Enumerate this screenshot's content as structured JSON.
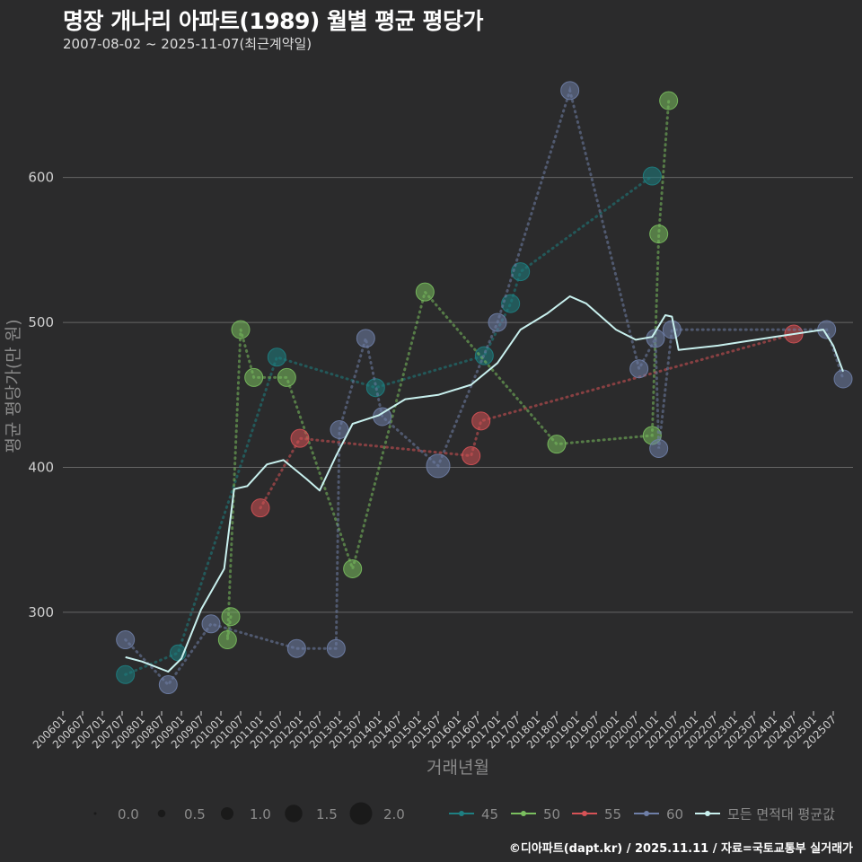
{
  "title": "명장 개나리 아파트(1989) 월별 평균 평당가",
  "subtitle": "2007-08-02 ~ 2025-11-07(최근계약일)",
  "footer": "©디아파트(dapt.kr) / 2025.11.11 / 자료=국토교통부 실거래가",
  "chart_data": {
    "type": "line",
    "title": "명장 개나리 아파트(1989) 월별 평균 평당가",
    "xlabel": "거래년월",
    "ylabel": "평균 평당가(만 원)",
    "ylim": [
      233,
      676
    ],
    "yticks": [
      300,
      400,
      500,
      600
    ],
    "x_range": [
      "2006-01",
      "2026-01"
    ],
    "x_ticks": [
      "200601",
      "200607",
      "200701",
      "200707",
      "200801",
      "200807",
      "200901",
      "200907",
      "201001",
      "201007",
      "201101",
      "201107",
      "201201",
      "201207",
      "201301",
      "201307",
      "201401",
      "201407",
      "201501",
      "201507",
      "201601",
      "201607",
      "201701",
      "201707",
      "201801",
      "201807",
      "201901",
      "201907",
      "202001",
      "202007",
      "202101",
      "202107",
      "202201",
      "202207",
      "202301",
      "202307",
      "202401",
      "202407",
      "202501",
      "202507"
    ],
    "size_legend": {
      "title": "",
      "values": [
        "0.0",
        "0.5",
        "1.0",
        "1.5",
        "2.0"
      ]
    },
    "color_legend": [
      "45",
      "50",
      "55",
      "60",
      "모든 면적대 평균값"
    ],
    "series": [
      {
        "name": "45",
        "color": "#1e7f82",
        "points": [
          {
            "x": "2007-08",
            "y": 257,
            "size": 1.0
          },
          {
            "x": "2008-12",
            "y": 272,
            "size": 0.8
          },
          {
            "x": "2011-06",
            "y": 476,
            "size": 1.0
          },
          {
            "x": "2013-12",
            "y": 455,
            "size": 1.0
          },
          {
            "x": "2016-09",
            "y": 477,
            "size": 1.0
          },
          {
            "x": "2017-05",
            "y": 513,
            "size": 1.0
          },
          {
            "x": "2017-08",
            "y": 535,
            "size": 1.0
          },
          {
            "x": "2020-12",
            "y": 601,
            "size": 1.0
          }
        ]
      },
      {
        "name": "50",
        "color": "#7abf5f",
        "points": [
          {
            "x": "2010-04",
            "y": 297,
            "size": 1.0
          },
          {
            "x": "2010-03",
            "y": 281,
            "size": 1.0
          },
          {
            "x": "2010-07",
            "y": 495,
            "size": 1.0
          },
          {
            "x": "2010-11",
            "y": 462,
            "size": 1.0
          },
          {
            "x": "2011-09",
            "y": 462,
            "size": 1.0
          },
          {
            "x": "2013-05",
            "y": 330,
            "size": 1.0
          },
          {
            "x": "2015-03",
            "y": 521,
            "size": 1.0
          },
          {
            "x": "2018-07",
            "y": 416,
            "size": 1.0
          },
          {
            "x": "2020-12",
            "y": 422,
            "size": 1.0
          },
          {
            "x": "2021-02",
            "y": 561,
            "size": 1.0
          },
          {
            "x": "2021-05",
            "y": 653,
            "size": 1.0
          }
        ]
      },
      {
        "name": "55",
        "color": "#d65256",
        "points": [
          {
            "x": "2011-01",
            "y": 372,
            "size": 1.0
          },
          {
            "x": "2012-01",
            "y": 420,
            "size": 1.0
          },
          {
            "x": "2016-05",
            "y": 408,
            "size": 1.0
          },
          {
            "x": "2016-08",
            "y": 432,
            "size": 1.0
          },
          {
            "x": "2024-07",
            "y": 492,
            "size": 1.0
          }
        ]
      },
      {
        "name": "60",
        "color": "#6f7fa8",
        "points": [
          {
            "x": "2007-08",
            "y": 281,
            "size": 1.0
          },
          {
            "x": "2008-09",
            "y": 250,
            "size": 1.0
          },
          {
            "x": "2009-10",
            "y": 292,
            "size": 1.0
          },
          {
            "x": "2011-12",
            "y": 275,
            "size": 1.0
          },
          {
            "x": "2012-12",
            "y": 275,
            "size": 1.0
          },
          {
            "x": "2013-01",
            "y": 426,
            "size": 1.0
          },
          {
            "x": "2013-09",
            "y": 489,
            "size": 1.0
          },
          {
            "x": "2014-02",
            "y": 435,
            "size": 1.0
          },
          {
            "x": "2015-07",
            "y": 401,
            "size": 1.5
          },
          {
            "x": "2017-01",
            "y": 500,
            "size": 1.0
          },
          {
            "x": "2018-11",
            "y": 660,
            "size": 1.0
          },
          {
            "x": "2020-08",
            "y": 468,
            "size": 1.0
          },
          {
            "x": "2021-01",
            "y": 489,
            "size": 1.0
          },
          {
            "x": "2021-02",
            "y": 413,
            "size": 1.0
          },
          {
            "x": "2021-06",
            "y": 495,
            "size": 1.0
          },
          {
            "x": "2025-05",
            "y": 495,
            "size": 1.0
          },
          {
            "x": "2025-10",
            "y": 461,
            "size": 1.0
          }
        ]
      },
      {
        "name": "모든 면적대 평균값",
        "color": "#c8f0ee",
        "points": [
          {
            "x": "2007-08",
            "y": 269
          },
          {
            "x": "2008-01",
            "y": 266
          },
          {
            "x": "2008-09",
            "y": 259
          },
          {
            "x": "2009-01",
            "y": 268
          },
          {
            "x": "2009-07",
            "y": 302
          },
          {
            "x": "2009-11",
            "y": 318
          },
          {
            "x": "2010-02",
            "y": 330
          },
          {
            "x": "2010-05",
            "y": 385
          },
          {
            "x": "2010-09",
            "y": 387
          },
          {
            "x": "2011-03",
            "y": 402
          },
          {
            "x": "2011-08",
            "y": 405
          },
          {
            "x": "2012-03",
            "y": 392
          },
          {
            "x": "2012-07",
            "y": 384
          },
          {
            "x": "2012-12",
            "y": 408
          },
          {
            "x": "2013-05",
            "y": 430
          },
          {
            "x": "2014-01",
            "y": 436
          },
          {
            "x": "2014-09",
            "y": 447
          },
          {
            "x": "2015-07",
            "y": 450
          },
          {
            "x": "2016-05",
            "y": 457
          },
          {
            "x": "2017-01",
            "y": 472
          },
          {
            "x": "2017-08",
            "y": 495
          },
          {
            "x": "2018-04",
            "y": 506
          },
          {
            "x": "2018-11",
            "y": 518
          },
          {
            "x": "2019-04",
            "y": 513
          },
          {
            "x": "2020-01",
            "y": 495
          },
          {
            "x": "2020-07",
            "y": 488
          },
          {
            "x": "2020-12",
            "y": 490
          },
          {
            "x": "2021-04",
            "y": 505
          },
          {
            "x": "2021-06",
            "y": 504
          },
          {
            "x": "2021-08",
            "y": 481
          },
          {
            "x": "2022-08",
            "y": 484
          },
          {
            "x": "2024-01",
            "y": 490
          },
          {
            "x": "2025-04",
            "y": 495
          },
          {
            "x": "2025-07",
            "y": 484
          },
          {
            "x": "2025-10",
            "y": 466
          }
        ]
      }
    ]
  }
}
